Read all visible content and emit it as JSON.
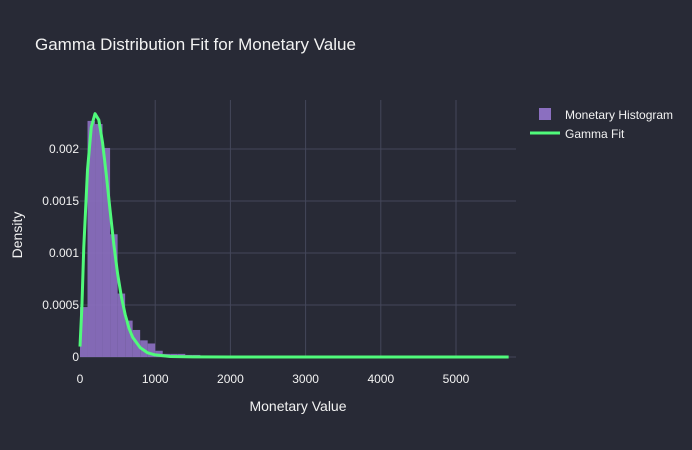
{
  "chart_data": {
    "type": "bar",
    "title": "Gamma Distribution Fit for Monetary Value",
    "xlabel": "Monetary Value",
    "ylabel": "Density",
    "xlim": [
      0,
      5800
    ],
    "ylim": [
      0,
      0.00245
    ],
    "x_ticks": [
      0,
      1000,
      2000,
      3000,
      4000,
      5000
    ],
    "x_tick_labels": [
      "0",
      "1000",
      "2000",
      "3000",
      "4000",
      "5000"
    ],
    "y_ticks": [
      0,
      0.0005,
      0.001,
      0.0015,
      0.002
    ],
    "y_tick_labels": [
      "0",
      "0.0005",
      "0.001",
      "0.0015",
      "0.002"
    ],
    "grid": true,
    "legend_position": "top-right",
    "colors": {
      "background": "#282a36",
      "grid": "#44475a",
      "histogram": "#8b6fc0",
      "gamma_fit": "#50fa7b",
      "text": "#f2f2f2"
    },
    "series": [
      {
        "name": "Monetary Histogram",
        "type": "histogram",
        "bin_width": 100,
        "bin_starts": [
          0,
          100,
          200,
          300,
          400,
          500,
          600,
          700,
          800,
          900,
          1000,
          1100,
          1200,
          1300,
          1400,
          1500,
          1600
        ],
        "values": [
          0.00048,
          0.00227,
          0.00224,
          0.00201,
          0.00118,
          0.00061,
          0.00035,
          0.00026,
          0.00016,
          0.00013,
          6e-05,
          3e-05,
          3e-05,
          3e-05,
          2e-05,
          2e-05,
          1e-05
        ]
      },
      {
        "name": "Gamma Fit",
        "type": "line",
        "x": [
          0,
          25,
          50,
          100,
          150,
          200,
          250,
          300,
          350,
          400,
          450,
          500,
          550,
          600,
          650,
          700,
          800,
          900,
          1000,
          1200,
          1500,
          2000,
          3000,
          4000,
          5000,
          5700
        ],
        "y": [
          0.0001,
          0.00048,
          0.00105,
          0.0018,
          0.00221,
          0.00234,
          0.00228,
          0.00206,
          0.00175,
          0.00141,
          0.00108,
          0.0008,
          0.00058,
          0.00041,
          0.00028,
          0.00019,
          9e-05,
          4e-05,
          2e-05,
          5e-06,
          1e-06,
          0,
          0,
          0,
          0,
          0
        ]
      }
    ]
  }
}
